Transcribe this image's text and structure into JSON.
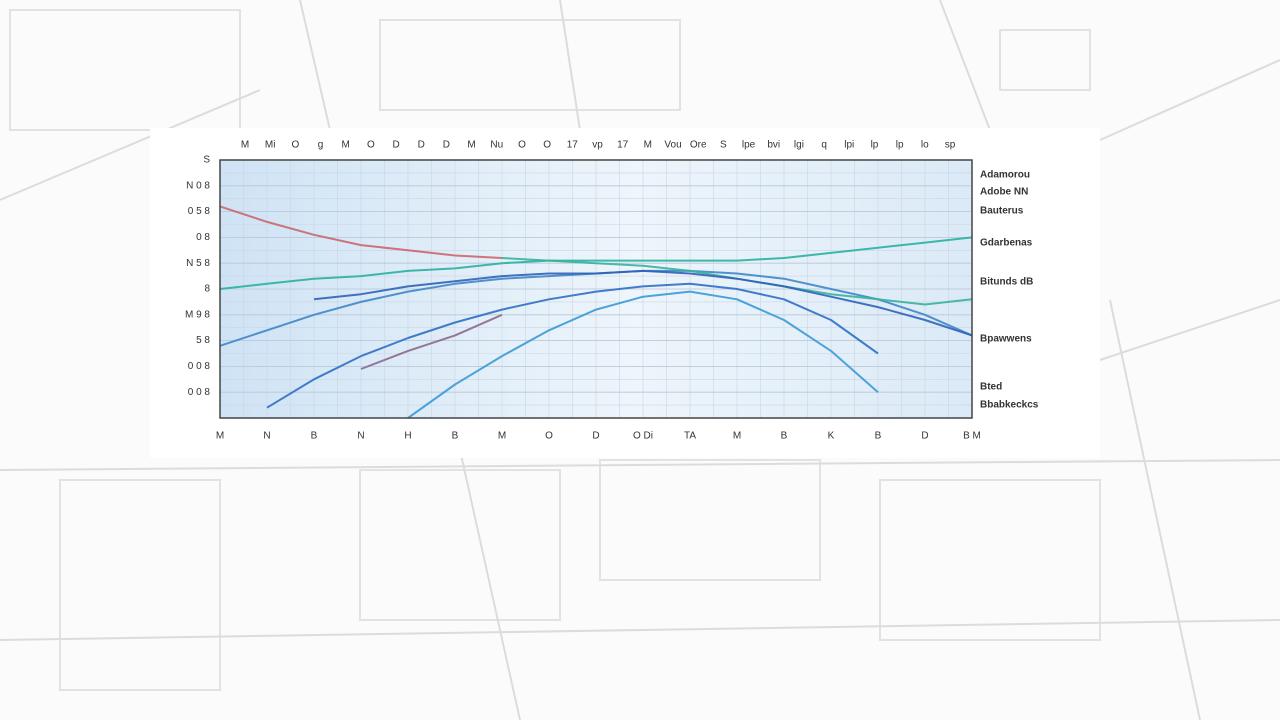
{
  "chart_data": {
    "type": "line",
    "top_labels": [
      "M",
      "Mi",
      "O",
      "g",
      "M",
      "O",
      "D",
      "D",
      "D",
      "M",
      "Nu",
      "O",
      "O",
      "17",
      "vp",
      "17",
      "M",
      "Vou",
      "Ore",
      "S",
      "lpe",
      "bvi",
      "lgi",
      "q",
      "lpi",
      "lp",
      "lp",
      "lo",
      "sp"
    ],
    "categories": [
      "M",
      "N",
      "B",
      "N",
      "H",
      "B",
      "M",
      "O",
      "D",
      "O Di",
      "TA",
      "M",
      "B",
      "K",
      "B",
      "D",
      "B M"
    ],
    "ylim": [
      0,
      10
    ],
    "yticks": [
      {
        "value": 1,
        "label": "0 0 8"
      },
      {
        "value": 2,
        "label": "0 0 8"
      },
      {
        "value": 3,
        "label": "5 8"
      },
      {
        "value": 4,
        "label": "M 9 8"
      },
      {
        "value": 5,
        "label": "8"
      },
      {
        "value": 6,
        "label": "N 5 8"
      },
      {
        "value": 7,
        "label": "0 8"
      },
      {
        "value": 8,
        "label": "0 5 8"
      },
      {
        "value": 9,
        "label": "N 0 8"
      },
      {
        "value": 10,
        "label": "S"
      }
    ],
    "grid": true,
    "series": [
      {
        "name": "Adamorou",
        "color": "#3f86c8",
        "values": [
          2.8,
          3.4,
          4.0,
          4.5,
          4.9,
          5.2,
          5.4,
          5.5,
          5.6,
          5.7,
          5.7,
          5.6,
          5.4,
          5.0,
          4.6,
          4.0,
          3.2
        ]
      },
      {
        "name": "Adobe NN",
        "color": "#2f6fc4",
        "values": [
          null,
          0.4,
          1.5,
          2.4,
          3.1,
          3.7,
          4.2,
          4.6,
          4.9,
          5.1,
          5.2,
          5.0,
          4.6,
          3.8,
          2.5,
          null,
          null
        ]
      },
      {
        "name": "Bauterus",
        "color": "#2ab0a0",
        "values": [
          5.0,
          5.2,
          5.4,
          5.5,
          5.7,
          5.8,
          6.0,
          6.1,
          6.1,
          6.1,
          6.1,
          6.1,
          6.2,
          6.4,
          6.6,
          6.8,
          7.0
        ]
      },
      {
        "name": "Gdarbenas",
        "color": "#3a9ad6",
        "values": [
          null,
          null,
          null,
          null,
          0.0,
          1.3,
          2.4,
          3.4,
          4.2,
          4.7,
          4.9,
          4.6,
          3.8,
          2.6,
          1.0,
          null,
          null
        ]
      },
      {
        "name": "Bitunds dB",
        "color": "#36b39a",
        "values": [
          null,
          null,
          null,
          null,
          null,
          null,
          6.2,
          6.1,
          6.0,
          5.9,
          5.7,
          5.4,
          5.1,
          4.8,
          4.6,
          4.4,
          4.6
        ]
      },
      {
        "name": "Bpawwens",
        "color": "#2d63b8",
        "values": [
          null,
          null,
          4.6,
          4.8,
          5.1,
          5.3,
          5.5,
          5.6,
          5.6,
          5.7,
          5.6,
          5.4,
          5.1,
          4.7,
          4.3,
          3.8,
          3.2
        ]
      },
      {
        "name": "Bted",
        "color": "#c9676e",
        "values": [
          8.2,
          7.6,
          7.1,
          6.7,
          6.5,
          6.3,
          6.2,
          null,
          null,
          null,
          null,
          null,
          null,
          null,
          null,
          null,
          null
        ]
      },
      {
        "name": "Bbabkeckcs",
        "color": "#8a6a8c",
        "values": [
          null,
          null,
          null,
          1.9,
          2.6,
          3.2,
          4.0,
          null,
          null,
          null,
          null,
          null,
          null,
          null,
          null,
          null,
          null
        ]
      }
    ]
  }
}
